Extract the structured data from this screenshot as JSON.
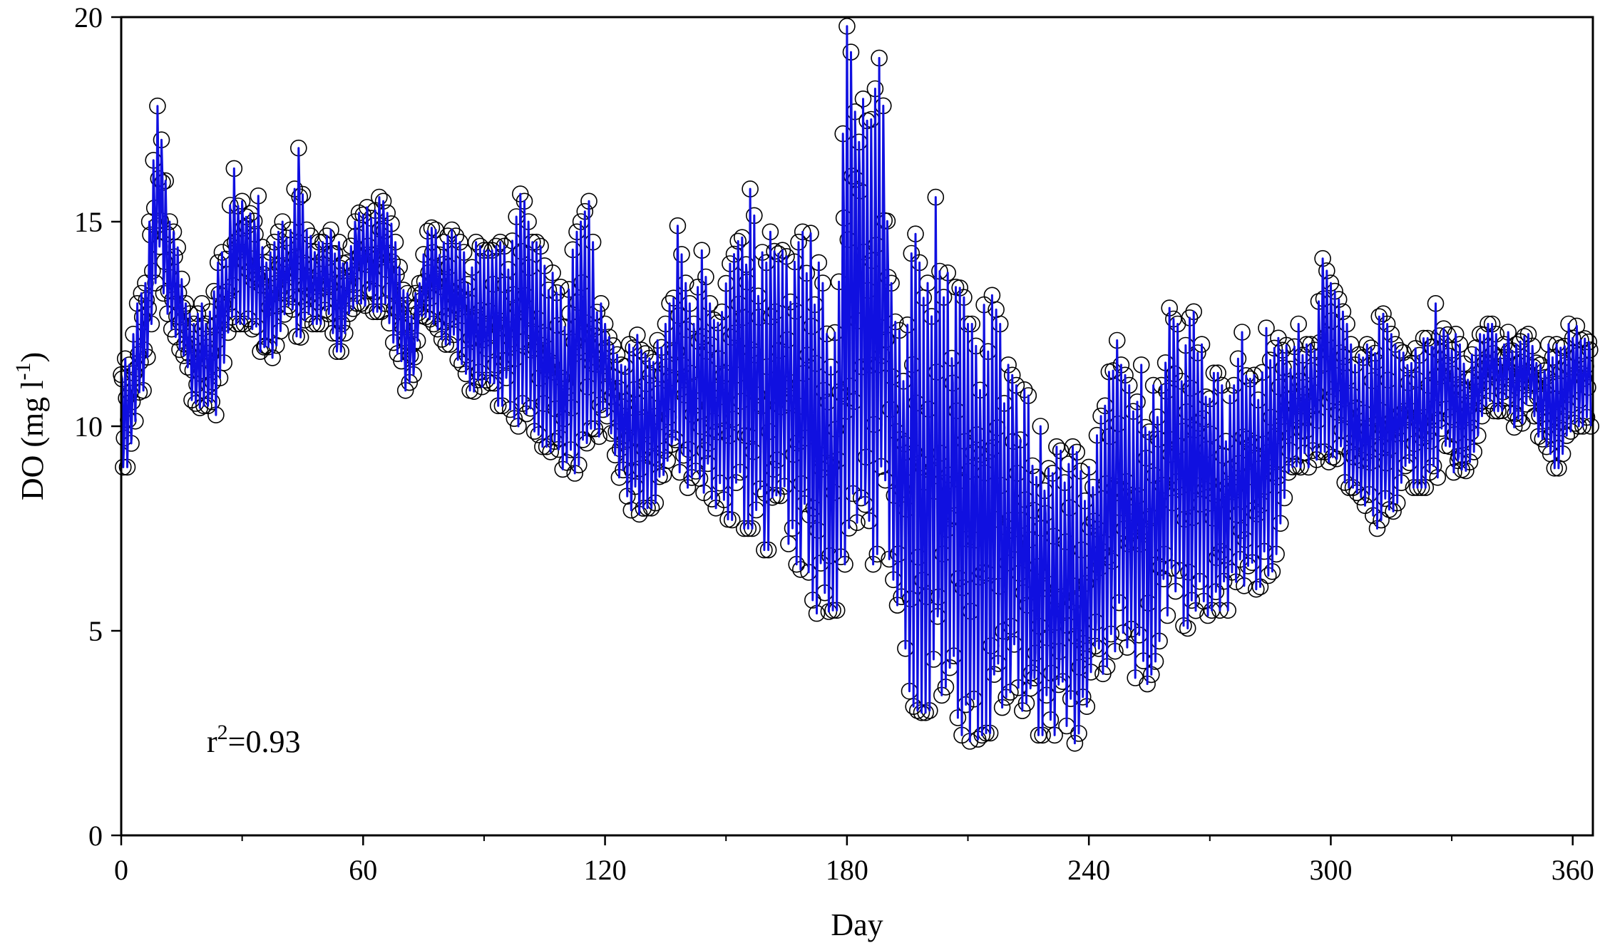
{
  "chart_data": {
    "type": "scatter",
    "title": "",
    "xlabel": "Day",
    "ylabel_parts": {
      "main": "DO (mg l",
      "sup": "-1",
      "end": ")"
    },
    "xlim": [
      0,
      365
    ],
    "ylim": [
      0,
      20
    ],
    "xticks": [
      0,
      60,
      120,
      180,
      240,
      300,
      360
    ],
    "yticks": [
      0,
      5,
      10,
      15,
      20
    ],
    "xtick_labels": [
      "0",
      "60",
      "120",
      "180",
      "240",
      "300",
      "360"
    ],
    "ytick_labels": [
      "0",
      "5",
      "10",
      "15",
      "20"
    ],
    "grid": false,
    "legend": "none",
    "annotation": {
      "base": "r",
      "sup": "2",
      "rest": "=0.93"
    },
    "series": [
      {
        "style": "circle-markers",
        "color": "#000000",
        "points_per_day": 4,
        "daily_envelope": [
          [
            0,
            11.8,
            9.0
          ],
          [
            2,
            11.5,
            9.0
          ],
          [
            4,
            13.0,
            10.5
          ],
          [
            6,
            13.5,
            11.0
          ],
          [
            8,
            16.5,
            13.0
          ],
          [
            9,
            18.0,
            14.0
          ],
          [
            10,
            17.0,
            13.5
          ],
          [
            12,
            15.0,
            12.5
          ],
          [
            14,
            14.5,
            12.0
          ],
          [
            16,
            13.0,
            11.5
          ],
          [
            18,
            12.5,
            10.3
          ],
          [
            20,
            13.0,
            10.5
          ],
          [
            22,
            12.8,
            10.5
          ],
          [
            24,
            14.0,
            10.2
          ],
          [
            26,
            14.5,
            12.0
          ],
          [
            28,
            16.3,
            12.5
          ],
          [
            30,
            15.5,
            12.5
          ],
          [
            32,
            15.5,
            12.5
          ],
          [
            34,
            15.7,
            12.0
          ],
          [
            36,
            14.0,
            11.3
          ],
          [
            38,
            14.5,
            11.8
          ],
          [
            40,
            15.0,
            12.5
          ],
          [
            42,
            14.8,
            12.5
          ],
          [
            44,
            16.8,
            12.0
          ],
          [
            46,
            14.8,
            12.5
          ],
          [
            48,
            14.5,
            12.5
          ],
          [
            50,
            14.5,
            12.5
          ],
          [
            52,
            14.8,
            12.5
          ],
          [
            54,
            14.5,
            11.6
          ],
          [
            56,
            14.0,
            12.5
          ],
          [
            58,
            15.0,
            13.0
          ],
          [
            60,
            15.5,
            13.0
          ],
          [
            62,
            15.2,
            12.8
          ],
          [
            64,
            15.6,
            12.8
          ],
          [
            66,
            15.4,
            12.8
          ],
          [
            68,
            14.5,
            11.5
          ],
          [
            70,
            13.5,
            11.0
          ],
          [
            72,
            13.0,
            10.5
          ],
          [
            74,
            13.5,
            12.5
          ],
          [
            76,
            14.9,
            12.5
          ],
          [
            78,
            14.8,
            12.5
          ],
          [
            80,
            14.5,
            12.0
          ],
          [
            82,
            14.8,
            12.0
          ],
          [
            84,
            14.5,
            11.5
          ],
          [
            86,
            14.0,
            11.0
          ],
          [
            88,
            14.5,
            10.5
          ],
          [
            90,
            14.3,
            10.5
          ],
          [
            92,
            14.3,
            10.5
          ],
          [
            94,
            14.5,
            10.5
          ],
          [
            96,
            14.3,
            10.5
          ],
          [
            98,
            16.2,
            10.0
          ],
          [
            100,
            15.5,
            10.0
          ],
          [
            102,
            14.5,
            10.0
          ],
          [
            104,
            14.5,
            9.5
          ],
          [
            106,
            14.0,
            9.5
          ],
          [
            108,
            13.5,
            9.0
          ],
          [
            110,
            13.3,
            8.5
          ],
          [
            112,
            14.5,
            8.8
          ],
          [
            114,
            15.0,
            9.0
          ],
          [
            116,
            15.5,
            9.0
          ],
          [
            118,
            13.5,
            9.5
          ],
          [
            120,
            12.5,
            10.5
          ],
          [
            122,
            12.0,
            9.5
          ],
          [
            124,
            11.5,
            8.5
          ],
          [
            126,
            12.0,
            8.0
          ],
          [
            128,
            12.5,
            7.8
          ],
          [
            130,
            12.5,
            8.0
          ],
          [
            132,
            12.2,
            8.0
          ],
          [
            134,
            12.0,
            8.5
          ],
          [
            136,
            13.0,
            8.5
          ],
          [
            138,
            14.9,
            9.0
          ],
          [
            140,
            13.5,
            8.5
          ],
          [
            142,
            12.5,
            8.5
          ],
          [
            144,
            14.3,
            8.5
          ],
          [
            146,
            13.0,
            8.0
          ],
          [
            148,
            13.5,
            8.0
          ],
          [
            150,
            14.0,
            7.8
          ],
          [
            152,
            14.5,
            7.5
          ],
          [
            154,
            15.0,
            7.5
          ],
          [
            156,
            15.8,
            7.5
          ],
          [
            158,
            14.5,
            7.5
          ],
          [
            160,
            14.0,
            6.8
          ],
          [
            162,
            15.5,
            7.5
          ],
          [
            164,
            14.3,
            7.5
          ],
          [
            166,
            14.0,
            7.0
          ],
          [
            168,
            14.5,
            6.5
          ],
          [
            170,
            15.0,
            6.5
          ],
          [
            172,
            14.5,
            5.5
          ],
          [
            174,
            13.5,
            5.2
          ],
          [
            176,
            12.5,
            5.5
          ],
          [
            178,
            14.5,
            5.5
          ],
          [
            180,
            19.8,
            7.0
          ],
          [
            182,
            18.5,
            6.5
          ],
          [
            184,
            18.0,
            6.2
          ],
          [
            186,
            17.5,
            6.5
          ],
          [
            188,
            19.0,
            7.0
          ],
          [
            190,
            16.7,
            7.0
          ],
          [
            192,
            13.0,
            6.0
          ],
          [
            194,
            12.5,
            4.5
          ],
          [
            196,
            15.4,
            3.2
          ],
          [
            198,
            14.0,
            3.0
          ],
          [
            200,
            13.5,
            3.0
          ],
          [
            202,
            15.6,
            3.2
          ],
          [
            204,
            14.5,
            3.5
          ],
          [
            206,
            13.0,
            4.0
          ],
          [
            208,
            13.8,
            2.5
          ],
          [
            210,
            12.5,
            2.3
          ],
          [
            212,
            12.5,
            2.3
          ],
          [
            214,
            13.2,
            2.5
          ],
          [
            216,
            13.2,
            2.5
          ],
          [
            218,
            12.5,
            3.0
          ],
          [
            220,
            11.5,
            3.5
          ],
          [
            222,
            11.0,
            3.5
          ],
          [
            224,
            11.0,
            2.8
          ],
          [
            226,
            10.5,
            2.3
          ],
          [
            228,
            10.0,
            2.5
          ],
          [
            230,
            9.5,
            2.3
          ],
          [
            232,
            9.5,
            2.5
          ],
          [
            234,
            9.3,
            2.8
          ],
          [
            236,
            9.5,
            2.3
          ],
          [
            238,
            9.3,
            2.1
          ],
          [
            240,
            9.0,
            3.5
          ],
          [
            242,
            10.0,
            3.8
          ],
          [
            244,
            10.5,
            4.0
          ],
          [
            246,
            12.7,
            4.5
          ],
          [
            248,
            11.5,
            4.5
          ],
          [
            250,
            11.0,
            4.0
          ],
          [
            252,
            11.5,
            3.8
          ],
          [
            254,
            11.5,
            3.6
          ],
          [
            256,
            11.0,
            4.0
          ],
          [
            258,
            11.0,
            5.0
          ],
          [
            260,
            13.7,
            5.5
          ],
          [
            262,
            12.5,
            5.5
          ],
          [
            264,
            12.5,
            5.0
          ],
          [
            266,
            12.8,
            4.8
          ],
          [
            268,
            12.0,
            5.0
          ],
          [
            270,
            11.5,
            5.5
          ],
          [
            272,
            11.5,
            5.5
          ],
          [
            274,
            10.5,
            5.5
          ],
          [
            276,
            11.0,
            5.5
          ],
          [
            278,
            12.3,
            6.0
          ],
          [
            280,
            11.5,
            6.0
          ],
          [
            282,
            11.0,
            6.0
          ],
          [
            284,
            12.4,
            6.3
          ],
          [
            286,
            12.0,
            6.5
          ],
          [
            288,
            12.5,
            8.0
          ],
          [
            290,
            11.5,
            9.0
          ],
          [
            292,
            12.5,
            9.0
          ],
          [
            294,
            12.0,
            9.0
          ],
          [
            296,
            12.0,
            9.0
          ],
          [
            298,
            14.1,
            9.5
          ],
          [
            300,
            13.5,
            9.0
          ],
          [
            302,
            13.1,
            9.0
          ],
          [
            304,
            12.5,
            8.5
          ],
          [
            306,
            11.5,
            8.5
          ],
          [
            308,
            12.0,
            8.0
          ],
          [
            310,
            12.0,
            7.5
          ],
          [
            312,
            13.0,
            7.5
          ],
          [
            314,
            12.5,
            7.4
          ],
          [
            316,
            12.0,
            8.0
          ],
          [
            318,
            11.8,
            8.5
          ],
          [
            320,
            12.0,
            8.5
          ],
          [
            322,
            11.8,
            8.5
          ],
          [
            324,
            12.5,
            8.5
          ],
          [
            326,
            13.0,
            8.5
          ],
          [
            328,
            12.8,
            9.5
          ],
          [
            330,
            12.5,
            9.0
          ],
          [
            332,
            12.0,
            8.5
          ],
          [
            334,
            11.5,
            9.0
          ],
          [
            336,
            12.0,
            9.5
          ],
          [
            338,
            12.5,
            10.5
          ],
          [
            340,
            12.5,
            10.5
          ],
          [
            342,
            12.0,
            10.0
          ],
          [
            344,
            12.3,
            10.5
          ],
          [
            346,
            12.0,
            9.8
          ],
          [
            348,
            12.5,
            10.0
          ],
          [
            350,
            12.0,
            10.5
          ],
          [
            352,
            11.5,
            9.5
          ],
          [
            354,
            12.0,
            9.5
          ],
          [
            356,
            12.0,
            8.8
          ],
          [
            358,
            12.5,
            9.5
          ],
          [
            360,
            12.5,
            10.0
          ],
          [
            362,
            12.4,
            10.0
          ],
          [
            365,
            12.5,
            10.0
          ]
        ]
      },
      {
        "style": "line",
        "color": "#1010e0"
      }
    ]
  }
}
